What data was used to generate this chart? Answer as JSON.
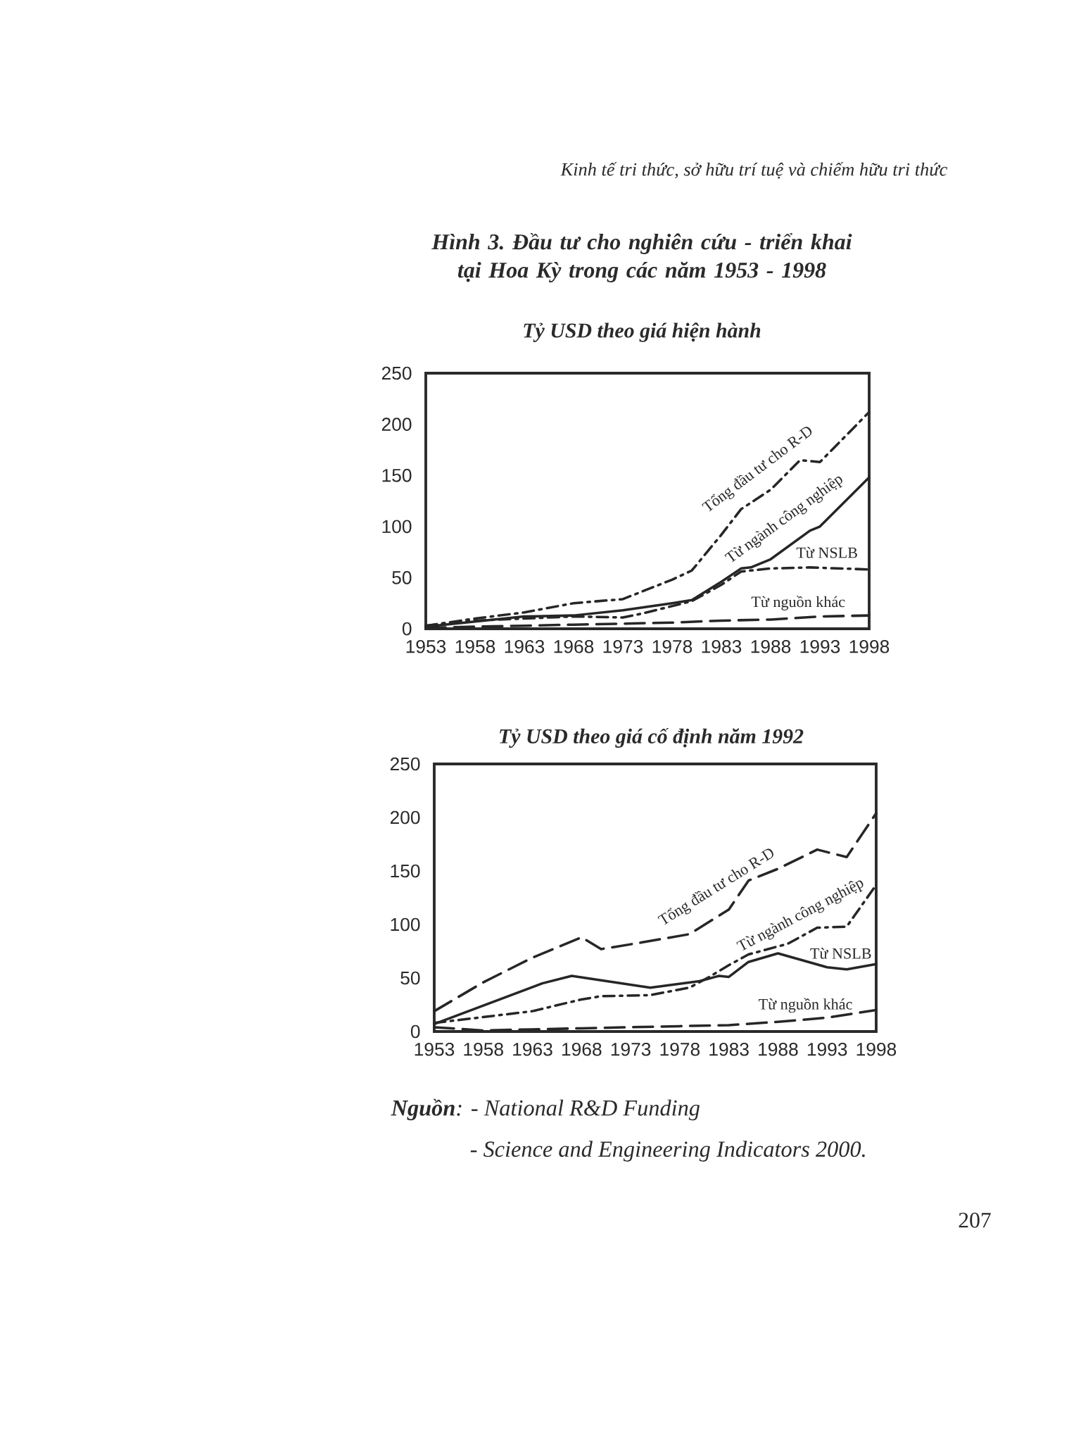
{
  "chart_data": [
    {
      "type": "line",
      "title": "Hình 3. Đầu tư cho nghiên cứu - triển khai tại Hoa Kỳ trong các năm 1953 - 1998",
      "subtitle": "Tỷ USD theo giá hiện hành",
      "xlim": [
        1953,
        1998
      ],
      "ylim": [
        0,
        250
      ],
      "xticks": [
        1953,
        1958,
        1963,
        1968,
        1973,
        1978,
        1983,
        1988,
        1993,
        1998
      ],
      "yticks": [
        0,
        50,
        100,
        150,
        200,
        250
      ],
      "series": [
        {
          "name": "Tổng đầu tư cho R-D",
          "color": "#262626",
          "line_style": "dashdot",
          "x": [
            1953,
            1958,
            1963,
            1968,
            1973,
            1978,
            1980,
            1983,
            1985,
            1988,
            1991,
            1993,
            1998
          ],
          "values": [
            3,
            10,
            16,
            25,
            29,
            48,
            57,
            92,
            117,
            136,
            165,
            163,
            212
          ]
        },
        {
          "name": "Từ ngành công nghiệp",
          "color": "#262626",
          "line_style": "solid",
          "x": [
            1953,
            1958,
            1963,
            1968,
            1973,
            1978,
            1980,
            1983,
            1985,
            1986,
            1988,
            1992,
            1993,
            1998
          ],
          "values": [
            2,
            7,
            12,
            13,
            18,
            25,
            28,
            46,
            59,
            60,
            68,
            96,
            100,
            148
          ]
        },
        {
          "name": "Từ NSLB",
          "color": "#262626",
          "line_style": "dashdot",
          "x": [
            1953,
            1958,
            1963,
            1968,
            1973,
            1975,
            1980,
            1983,
            1985,
            1988,
            1992,
            1998
          ],
          "values": [
            3,
            8,
            10,
            12,
            11,
            15,
            27,
            43,
            56,
            59,
            60,
            58
          ]
        },
        {
          "name": "Từ nguồn khác",
          "color": "#262626",
          "line_style": "dashed",
          "x": [
            1953,
            1958,
            1963,
            1968,
            1973,
            1978,
            1983,
            1988,
            1993,
            1998
          ],
          "values": [
            1,
            2,
            3,
            4,
            5,
            6,
            8,
            9,
            12,
            13
          ]
        }
      ],
      "annotations": [
        "Kinh tế tri thức, sở hữu trí tuệ và chiếm hữu tri thức"
      ]
    },
    {
      "type": "line",
      "subtitle": "Tỷ USD theo giá cố định năm 1992",
      "xlim": [
        1953,
        1998
      ],
      "ylim": [
        0,
        250
      ],
      "xticks": [
        1953,
        1958,
        1963,
        1968,
        1973,
        1978,
        1983,
        1988,
        1993,
        1998
      ],
      "yticks": [
        0,
        50,
        100,
        150,
        200,
        250
      ],
      "series": [
        {
          "name": "Tổng đầu tư cho R-D",
          "color": "#262626",
          "line_style": "dashed",
          "x": [
            1953,
            1958,
            1963,
            1968,
            1970,
            1974,
            1979,
            1983,
            1985,
            1988,
            1992,
            1995,
            1998
          ],
          "values": [
            19,
            46,
            69,
            88,
            77,
            83,
            91,
            114,
            141,
            152,
            170,
            163,
            204
          ]
        },
        {
          "name": "Từ ngành công nghiệp",
          "color": "#262626",
          "line_style": "dashdot",
          "x": [
            1953,
            1963,
            1968,
            1970,
            1975,
            1979,
            1981,
            1983,
            1985,
            1989,
            1992,
            1995,
            1998
          ],
          "values": [
            8,
            19,
            30,
            33,
            34,
            41,
            51,
            62,
            72,
            82,
            97,
            98,
            137
          ]
        },
        {
          "name": "Từ NSLB",
          "color": "#262626",
          "line_style": "solid",
          "x": [
            1953,
            1964,
            1967,
            1975,
            1980,
            1982,
            1983,
            1985,
            1988,
            1993,
            1995,
            1998
          ],
          "values": [
            7,
            45,
            52,
            41,
            47,
            52,
            51,
            65,
            73,
            60,
            58,
            63
          ]
        },
        {
          "name": "Từ nguồn khác",
          "color": "#262626",
          "line_style": "dashed",
          "x": [
            1953,
            1958,
            1963,
            1968,
            1973,
            1978,
            1983,
            1988,
            1993,
            1998
          ],
          "values": [
            4,
            1,
            2,
            3,
            4,
            5,
            6,
            9,
            13,
            20
          ]
        }
      ],
      "annotations": [
        "**Nguồn**: - National R&D Funding",
        "- Science and Engineering Indicators 2000.",
        "207"
      ]
    }
  ]
}
